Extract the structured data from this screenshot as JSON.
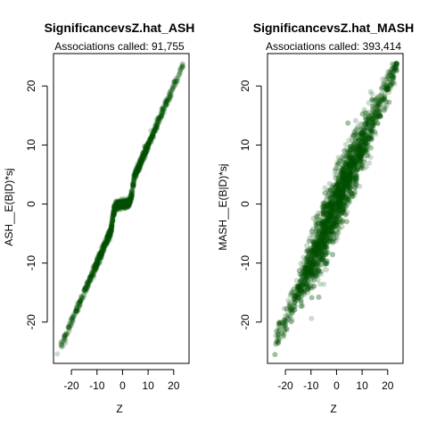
{
  "chart_data": [
    {
      "type": "scatter",
      "title": "SignificancevsZ.hat_ASH",
      "subtitle": "Associations called: 91,755",
      "xlabel": "Z",
      "ylabel": "ASH__E(B|D)*sj",
      "xlim": [
        -27,
        26
      ],
      "ylim": [
        -27,
        25.5
      ],
      "xticks": [
        -20,
        -10,
        0,
        10,
        20
      ],
      "yticks": [
        -20,
        -10,
        0,
        10,
        20
      ],
      "xtick_labels": [
        "-20",
        "-10",
        "0",
        "10",
        "20"
      ],
      "ytick_labels": [
        "-20",
        "-10",
        "0",
        "10",
        "20"
      ],
      "marker_color": "#005000",
      "grid": false,
      "shape": "thin monotone band; near y=0 for |Z|<3, then y ≈ Z",
      "series": [
        {
          "x": [
            -25,
            -22,
            -19,
            -16,
            -13,
            -10,
            -7,
            -5,
            -4,
            -3,
            -2,
            -1,
            0,
            1,
            2,
            3,
            4,
            5,
            7,
            10,
            13,
            16,
            19,
            22,
            23
          ],
          "y": [
            -25,
            -22,
            -19,
            -16,
            -13,
            -10,
            -7,
            -5,
            -3.2,
            -1,
            -0.3,
            -0.1,
            0,
            0.1,
            0.3,
            1,
            3.2,
            5,
            7,
            10,
            13,
            16,
            19,
            22,
            23.5
          ]
        }
      ]
    },
    {
      "type": "scatter",
      "title": "SignificancevsZ.hat_MASH",
      "subtitle": "Associations called: 393,414",
      "xlabel": "Z",
      "ylabel": "MASH__E(B|D)*sj",
      "xlim": [
        -27,
        26
      ],
      "ylim": [
        -27,
        25.5
      ],
      "xticks": [
        -20,
        -10,
        0,
        10,
        20
      ],
      "yticks": [
        -20,
        -10,
        0,
        10,
        20
      ],
      "xtick_labels": [
        "-20",
        "-10",
        "0",
        "10",
        "20"
      ],
      "ytick_labels": [
        "-20",
        "-10",
        "0",
        "10",
        "20"
      ],
      "marker_color": "#005000",
      "grid": false,
      "shape": "wide band around y ≈ Z, widest near the center",
      "series": [
        {
          "x": [
            -25,
            -20,
            -15,
            -10,
            -5,
            -3,
            0,
            3,
            5,
            10,
            15,
            20,
            23
          ],
          "y": [
            -25,
            -20,
            -15,
            -10,
            -5,
            -3,
            0,
            3,
            5,
            10,
            15,
            20,
            23.5
          ]
        }
      ]
    }
  ]
}
